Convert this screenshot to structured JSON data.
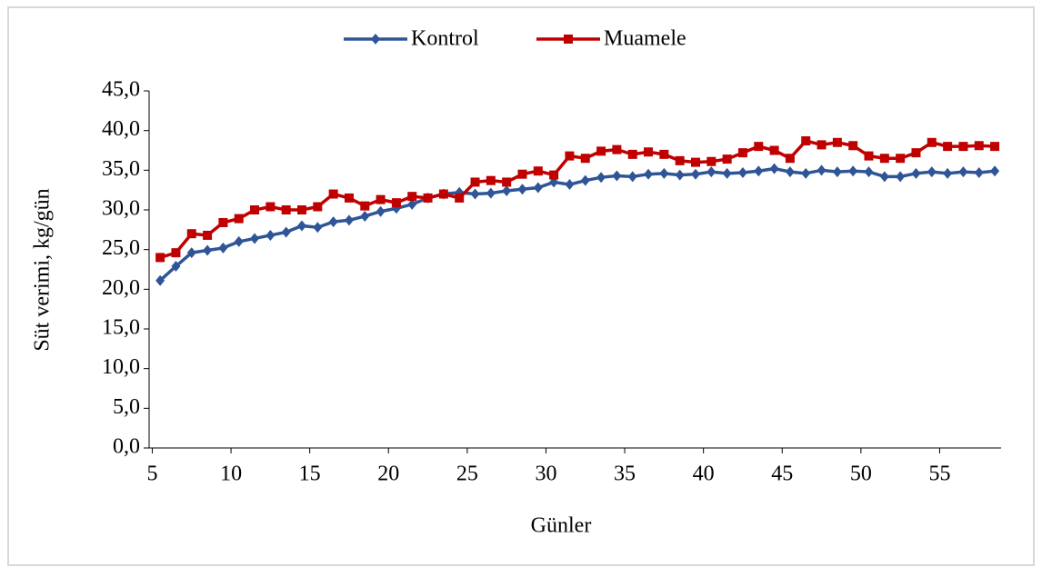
{
  "chart_data": {
    "type": "line",
    "x": [
      5.5,
      6.5,
      7.5,
      8.5,
      9.5,
      10.5,
      11.5,
      12.5,
      13.5,
      14.5,
      15.5,
      16.5,
      17.5,
      18.5,
      19.5,
      20.5,
      21.5,
      22.5,
      23.5,
      24.5,
      25.5,
      26.5,
      27.5,
      28.5,
      29.5,
      30.5,
      31.5,
      32.5,
      33.5,
      34.5,
      35.5,
      36.5,
      37.5,
      38.5,
      39.5,
      40.5,
      41.5,
      42.5,
      43.5,
      44.5,
      45.5,
      46.5,
      47.5,
      48.5,
      49.5,
      50.5,
      51.5,
      52.5,
      53.5,
      54.5,
      55.5,
      56.5,
      57.5,
      58.5
    ],
    "series": [
      {
        "name": "Kontrol",
        "color": "#2f5597",
        "marker": "diamond",
        "values": [
          21.1,
          22.9,
          24.6,
          24.9,
          25.2,
          26.0,
          26.4,
          26.8,
          27.2,
          28.0,
          27.8,
          28.5,
          28.7,
          29.2,
          29.8,
          30.2,
          30.7,
          31.5,
          32.0,
          32.2,
          32.0,
          32.1,
          32.4,
          32.6,
          32.8,
          33.5,
          33.2,
          33.7,
          34.1,
          34.3,
          34.2,
          34.5,
          34.6,
          34.4,
          34.5,
          34.8,
          34.6,
          34.7,
          34.9,
          35.2,
          34.8,
          34.6,
          35.0,
          34.8,
          34.9,
          34.8,
          34.2,
          34.2,
          34.6,
          34.8,
          34.6,
          34.8,
          34.7,
          34.9
        ]
      },
      {
        "name": "Muamele",
        "color": "#c00000",
        "marker": "square",
        "values": [
          24.0,
          24.6,
          27.0,
          26.8,
          28.4,
          28.9,
          30.0,
          30.4,
          30.0,
          30.0,
          30.4,
          32.0,
          31.5,
          30.5,
          31.3,
          30.9,
          31.7,
          31.5,
          32.0,
          31.5,
          33.5,
          33.7,
          33.5,
          34.5,
          34.9,
          34.4,
          36.8,
          36.5,
          37.4,
          37.6,
          37.0,
          37.3,
          37.0,
          36.2,
          36.0,
          36.1,
          36.4,
          37.2,
          38.0,
          37.5,
          36.5,
          38.7,
          38.2,
          38.5,
          38.1,
          36.8,
          36.5,
          36.5,
          37.2,
          38.5,
          38.0,
          38.0,
          38.1,
          38.0
        ]
      }
    ],
    "xlabel": "Günler",
    "ylabel": "Süt verimi, kg/gün",
    "xlim": [
      4.8,
      58.9
    ],
    "xticks": [
      5,
      10,
      15,
      20,
      25,
      30,
      35,
      40,
      45,
      50,
      55
    ],
    "ylim": [
      0,
      45
    ],
    "yticks": [
      {
        "value": 0,
        "label": "0,0"
      },
      {
        "value": 5,
        "label": "5,0"
      },
      {
        "value": 10,
        "label": "10,0"
      },
      {
        "value": 15,
        "label": "15,0"
      },
      {
        "value": 20,
        "label": "20,0"
      },
      {
        "value": 25,
        "label": "25,0"
      },
      {
        "value": 30,
        "label": "30,0"
      },
      {
        "value": 35,
        "label": "35,0"
      },
      {
        "value": 40,
        "label": "40,0"
      },
      {
        "value": 45,
        "label": "45,0"
      }
    ],
    "legend": "top"
  }
}
